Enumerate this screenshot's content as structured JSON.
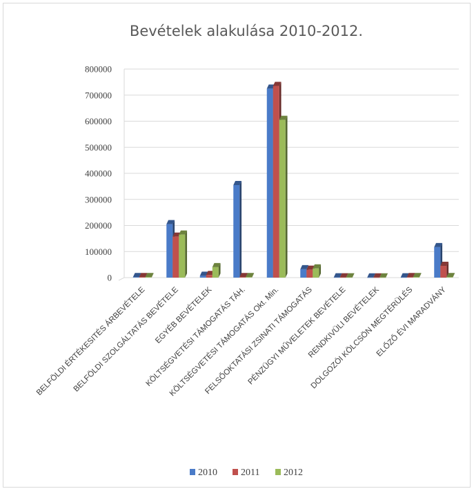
{
  "chart_data": {
    "type": "bar",
    "title": "Bevételek alakulása 2010-2012.",
    "xlabel": "",
    "ylabel": "",
    "ylim": [
      0,
      800000
    ],
    "yticks": [
      0,
      100000,
      200000,
      300000,
      400000,
      500000,
      600000,
      700000,
      800000
    ],
    "grid": true,
    "legend_position": "bottom",
    "style": "3d-clustered-column",
    "categories": [
      "BELFÖLDI ÉRTÉKESITÉS ÁRBEVÉTELE",
      "BELFÖLDI SZOLGÁLTATÁS BEVÉTELE",
      "EGYÉB BEVÉTELEK",
      "KÖLTSÉGVETÉSI TÁMOGATÁS  TÁH.",
      "KÖLTSÉGVETÉSI TÁMOGATÁS Okt. Min.",
      "FELSŐOKTATÁSI ZSINATI TÁMOGATÁS",
      "PÉNZÜGYI MŰVELETEK BEVÉTELE",
      "RENDKIVÜLI BEVÉTELEK",
      "DOLGOZÓI KÖLCSÖN MEGTÉRÜLÉS",
      "ELŐZŐ ÉVI MARADVÁNY"
    ],
    "series": [
      {
        "name": "2010",
        "color": "#4a7bc8",
        "values": [
          2000,
          205000,
          7000,
          355000,
          725000,
          32000,
          1000,
          500,
          1000,
          117000
        ]
      },
      {
        "name": "2011",
        "color": "#c0504d",
        "values": [
          2000,
          157000,
          10000,
          2000,
          735000,
          30000,
          1000,
          500,
          2000,
          45000
        ]
      },
      {
        "name": "2012",
        "color": "#9bbb59",
        "values": [
          2000,
          165000,
          40000,
          2000,
          605000,
          35000,
          1000,
          500,
          2000,
          2000
        ]
      }
    ]
  }
}
